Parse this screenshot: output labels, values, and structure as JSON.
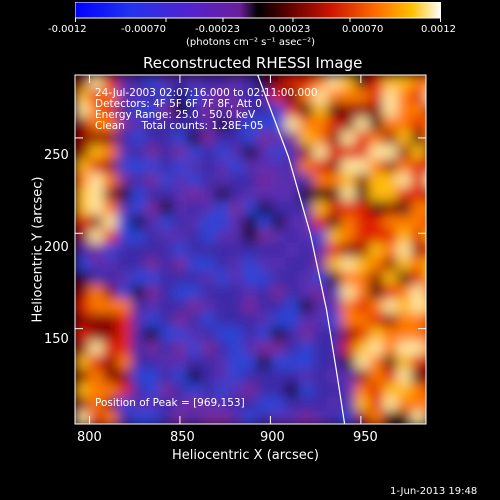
{
  "colorbar": {
    "tick_labels": [
      "-0.0012",
      "-0.00070",
      "-0.00023",
      "0.00023",
      "0.00070",
      "0.0012"
    ],
    "units": "(photons cm⁻² s⁻¹ asec⁻²)",
    "range": [
      -0.0012,
      0.0012
    ]
  },
  "chart_data": {
    "type": "heatmap",
    "title": "Reconstructed RHESSI Image",
    "xlabel": "Heliocentric X (arcsec)",
    "ylabel": "Heliocentric Y (arcsec)",
    "xlim": [
      792,
      986
    ],
    "ylim": [
      100,
      283
    ],
    "x_ticks": [
      "800",
      "850",
      "900",
      "950"
    ],
    "y_ticks": [
      "150",
      "200",
      "250"
    ],
    "limb_curve": [
      [
        893,
        283
      ],
      [
        910,
        240
      ],
      [
        922,
        200
      ],
      [
        931,
        160
      ],
      [
        937,
        125
      ],
      [
        941,
        100
      ]
    ],
    "peak": [
      969,
      153
    ]
  },
  "annotations": {
    "time_range": "24-Jul-2003 02:07:16.000 to 02:11:00.000",
    "detectors": "Detectors: 4F 5F 6F 7F 8F, Att 0",
    "energy": "Energy Range: 25.0 - 50.0 keV",
    "clean": "Clean     Total counts: 1.28E+05",
    "peak_text": "Position of Peak = [969,153]"
  },
  "footer": {
    "date": "1-Jun-2013 19:48"
  }
}
